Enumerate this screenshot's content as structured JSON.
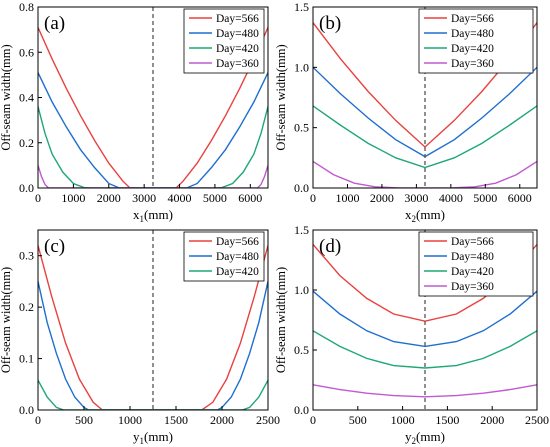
{
  "chart_data": [
    {
      "type": "line",
      "panel_label": "(a)",
      "xlabel": "x",
      "xlabel_sub": "1",
      "xlabel_unit": "(mm)",
      "ylabel": "Off-seam width(mm)",
      "xlim": [
        0,
        6500
      ],
      "ylim": [
        0,
        0.8
      ],
      "xticks": [
        0,
        1000,
        2000,
        3000,
        4000,
        5000,
        6000
      ],
      "yticks": [
        0.0,
        0.2,
        0.4,
        0.6,
        0.8
      ],
      "x_tick_labels": [
        "0",
        "1000",
        "2000",
        "3000",
        "4000",
        "5000",
        "6000"
      ],
      "y_tick_labels": [
        "0.0",
        "0.2",
        "0.4",
        "0.6",
        "0.8"
      ],
      "divider_x": 3250,
      "legend": "top-right",
      "series": [
        {
          "name": "Day=566",
          "color": "#e8423f",
          "x": [
            0,
            400,
            800,
            1200,
            1600,
            2000,
            2400,
            2600,
            3900,
            4100,
            4500,
            4900,
            5300,
            5700,
            6100,
            6500
          ],
          "y": [
            0.71,
            0.57,
            0.44,
            0.32,
            0.21,
            0.11,
            0.03,
            0.0,
            0.0,
            0.03,
            0.11,
            0.21,
            0.32,
            0.44,
            0.57,
            0.71
          ]
        },
        {
          "name": "Day=480",
          "color": "#1e6fd0",
          "x": [
            0,
            400,
            800,
            1200,
            1600,
            2000,
            2300,
            4200,
            4500,
            4900,
            5300,
            5700,
            6100,
            6500
          ],
          "y": [
            0.51,
            0.38,
            0.27,
            0.17,
            0.09,
            0.02,
            0.0,
            0.0,
            0.02,
            0.09,
            0.17,
            0.27,
            0.38,
            0.51
          ]
        },
        {
          "name": "Day=420",
          "color": "#1ea873",
          "x": [
            0,
            200,
            400,
            700,
            1000,
            1300,
            1500,
            5000,
            5200,
            5500,
            5800,
            6100,
            6300,
            6500
          ],
          "y": [
            0.36,
            0.24,
            0.15,
            0.07,
            0.02,
            0.002,
            0.0,
            0.0,
            0.002,
            0.02,
            0.07,
            0.15,
            0.24,
            0.36
          ]
        },
        {
          "name": "Day=360",
          "color": "#c05ad0",
          "x": [
            0,
            100,
            200,
            300,
            6200,
            6300,
            6400,
            6500
          ],
          "y": [
            0.1,
            0.05,
            0.015,
            0.0,
            0.0,
            0.015,
            0.05,
            0.1
          ]
        }
      ]
    },
    {
      "type": "line",
      "panel_label": "(b)",
      "xlabel": "x",
      "xlabel_sub": "2",
      "xlabel_unit": "(mm)",
      "ylabel": "Off-seam width(mm)",
      "xlim": [
        0,
        6500
      ],
      "ylim": [
        0,
        1.5
      ],
      "xticks": [
        0,
        1000,
        2000,
        3000,
        4000,
        5000,
        6000
      ],
      "yticks": [
        0.0,
        0.5,
        1.0,
        1.5
      ],
      "x_tick_labels": [
        "0",
        "1000",
        "2000",
        "3000",
        "4000",
        "5000",
        "6000"
      ],
      "y_tick_labels": [
        "0.0",
        "0.5",
        "1.0",
        "1.5"
      ],
      "divider_x": 3250,
      "legend": "top-right",
      "series": [
        {
          "name": "Day=566",
          "color": "#e8423f",
          "x": [
            0,
            800,
            1600,
            2400,
            3250,
            4100,
            4900,
            5700,
            6500
          ],
          "y": [
            1.37,
            1.07,
            0.8,
            0.56,
            0.34,
            0.56,
            0.8,
            1.07,
            1.37
          ]
        },
        {
          "name": "Day=480",
          "color": "#1e6fd0",
          "x": [
            0,
            800,
            1600,
            2400,
            3250,
            4100,
            4900,
            5700,
            6500
          ],
          "y": [
            1.0,
            0.78,
            0.58,
            0.4,
            0.26,
            0.4,
            0.58,
            0.78,
            1.0
          ]
        },
        {
          "name": "Day=420",
          "color": "#1ea873",
          "x": [
            0,
            800,
            1600,
            2400,
            3250,
            4100,
            4900,
            5700,
            6500
          ],
          "y": [
            0.68,
            0.52,
            0.37,
            0.25,
            0.17,
            0.25,
            0.37,
            0.52,
            0.68
          ]
        },
        {
          "name": "Day=360",
          "color": "#c05ad0",
          "x": [
            0,
            600,
            1200,
            1800,
            2500,
            4000,
            4700,
            5300,
            5900,
            6500
          ],
          "y": [
            0.22,
            0.11,
            0.04,
            0.01,
            0.0,
            0.0,
            0.01,
            0.04,
            0.11,
            0.22
          ]
        }
      ]
    },
    {
      "type": "line",
      "panel_label": "(c)",
      "xlabel": "y",
      "xlabel_sub": "1",
      "xlabel_unit": "(mm)",
      "ylabel": "Off-seam width(mm)",
      "xlim": [
        0,
        2500
      ],
      "ylim": [
        0,
        0.35
      ],
      "xticks": [
        0,
        500,
        1000,
        1500,
        2000,
        2500
      ],
      "yticks": [
        0.0,
        0.1,
        0.2,
        0.3
      ],
      "x_tick_labels": [
        "0",
        "500",
        "1000",
        "1500",
        "2000",
        "2500"
      ],
      "y_tick_labels": [
        "0.0",
        "0.1",
        "0.2",
        "0.3"
      ],
      "divider_x": 1250,
      "legend": "top-right",
      "series": [
        {
          "name": "Day=566",
          "color": "#e8423f",
          "x": [
            0,
            150,
            300,
            450,
            600,
            700,
            1780,
            1900,
            2050,
            2200,
            2350,
            2500
          ],
          "y": [
            0.32,
            0.22,
            0.13,
            0.06,
            0.015,
            0.0,
            0.0,
            0.015,
            0.06,
            0.13,
            0.22,
            0.32
          ]
        },
        {
          "name": "Day=480",
          "color": "#1e6fd0",
          "x": [
            0,
            100,
            200,
            300,
            400,
            500,
            550,
            1950,
            2000,
            2100,
            2200,
            2300,
            2400,
            2500
          ],
          "y": [
            0.25,
            0.17,
            0.11,
            0.06,
            0.025,
            0.005,
            0.0,
            0.0,
            0.005,
            0.025,
            0.06,
            0.11,
            0.17,
            0.25
          ]
        },
        {
          "name": "Day=420",
          "color": "#1ea873",
          "x": [
            0,
            100,
            200,
            280,
            2220,
            2300,
            2400,
            2500
          ],
          "y": [
            0.058,
            0.025,
            0.005,
            0.0,
            0.0,
            0.005,
            0.025,
            0.058
          ]
        }
      ]
    },
    {
      "type": "line",
      "panel_label": "(d)",
      "xlabel": "y",
      "xlabel_sub": "2",
      "xlabel_unit": "(mm)",
      "ylabel": "Off-seam width(mm)",
      "xlim": [
        0,
        2500
      ],
      "ylim": [
        0,
        1.5
      ],
      "xticks": [
        0,
        500,
        1000,
        1500,
        2000,
        2500
      ],
      "yticks": [
        0.0,
        0.5,
        1.0,
        1.5
      ],
      "x_tick_labels": [
        "0",
        "500",
        "1000",
        "1500",
        "2000",
        "2500"
      ],
      "y_tick_labels": [
        "0.0",
        "0.5",
        "1.0",
        "1.5"
      ],
      "divider_x": 1250,
      "legend": "top-right",
      "series": [
        {
          "name": "Day=566",
          "color": "#e8423f",
          "x": [
            0,
            300,
            600,
            900,
            1250,
            1600,
            1900,
            2200,
            2500
          ],
          "y": [
            1.38,
            1.12,
            0.93,
            0.8,
            0.74,
            0.8,
            0.93,
            1.12,
            1.38
          ]
        },
        {
          "name": "Day=480",
          "color": "#1e6fd0",
          "x": [
            0,
            300,
            600,
            900,
            1250,
            1600,
            1900,
            2200,
            2500
          ],
          "y": [
            0.99,
            0.8,
            0.66,
            0.57,
            0.53,
            0.57,
            0.66,
            0.8,
            0.99
          ]
        },
        {
          "name": "Day=420",
          "color": "#1ea873",
          "x": [
            0,
            300,
            600,
            900,
            1250,
            1600,
            1900,
            2200,
            2500
          ],
          "y": [
            0.66,
            0.53,
            0.43,
            0.37,
            0.35,
            0.37,
            0.43,
            0.53,
            0.66
          ]
        },
        {
          "name": "Day=360",
          "color": "#c05ad0",
          "x": [
            0,
            300,
            600,
            900,
            1250,
            1600,
            1900,
            2200,
            2500
          ],
          "y": [
            0.21,
            0.17,
            0.14,
            0.12,
            0.11,
            0.12,
            0.14,
            0.17,
            0.21
          ]
        }
      ]
    }
  ]
}
